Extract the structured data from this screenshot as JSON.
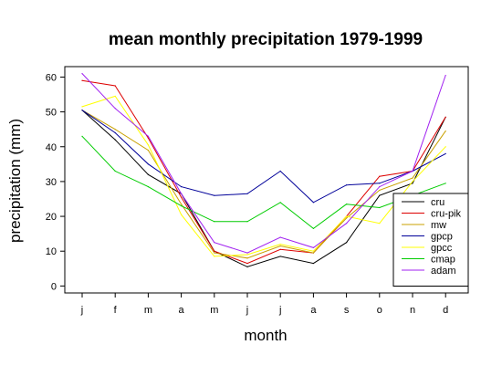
{
  "chart_data": {
    "type": "line",
    "title": "mean monthly precipitation 1979-1999",
    "xlabel": "month",
    "ylabel": "precipitation (mm)",
    "categories": [
      "j",
      "f",
      "m",
      "a",
      "m",
      "j",
      "j",
      "a",
      "s",
      "o",
      "n",
      "d"
    ],
    "ylim": [
      -2,
      63
    ],
    "yticks": [
      0,
      10,
      20,
      30,
      40,
      50,
      60
    ],
    "grid": false,
    "legend_position": "bottom-right",
    "series": [
      {
        "name": "cru",
        "color": "#000000",
        "values": [
          50.5,
          42,
          32,
          26.5,
          10,
          5.5,
          8.5,
          6.5,
          12.5,
          26,
          29.5,
          48.5
        ]
      },
      {
        "name": "cru-pik",
        "color": "#dd0000",
        "values": [
          59,
          57.5,
          42.5,
          25.5,
          10,
          6.5,
          10.5,
          9.5,
          20,
          31.5,
          33,
          48.5
        ]
      },
      {
        "name": "mw",
        "color": "#c8a000",
        "values": [
          50.5,
          45,
          39,
          23.5,
          9.5,
          8,
          11.5,
          9.5,
          19.5,
          27.5,
          31,
          44.5
        ]
      },
      {
        "name": "gpcp",
        "color": "#000099",
        "values": [
          50.5,
          44,
          35,
          28.5,
          26,
          26.5,
          33,
          24,
          29,
          29.5,
          33,
          38
        ]
      },
      {
        "name": "gpcc",
        "color": "#ffff00",
        "values": [
          51.5,
          54.5,
          40.5,
          20.5,
          8.5,
          9,
          12,
          10,
          20,
          18,
          30,
          40
        ]
      },
      {
        "name": "cmap",
        "color": "#00cc00",
        "values": [
          43,
          33,
          28.5,
          23,
          18.5,
          18.5,
          24,
          16.5,
          23.5,
          22.5,
          26,
          29.5
        ]
      },
      {
        "name": "adam",
        "color": "#a020f0",
        "values": [
          61,
          51,
          43,
          26.5,
          12.5,
          9.5,
          14,
          11,
          18,
          28.5,
          33,
          60.5
        ]
      }
    ]
  }
}
